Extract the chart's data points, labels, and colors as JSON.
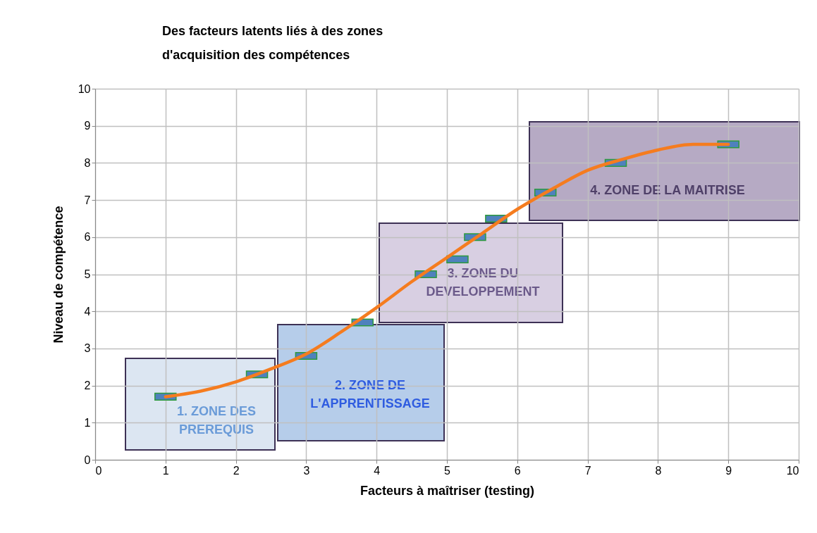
{
  "chart_data": {
    "type": "scatter",
    "title": "Des facteurs latents liés à des zones\nd'acquisition des compétences",
    "xlabel": "Facteurs à maîtriser (testing)",
    "ylabel": "Niveau de compétence",
    "series": [
      {
        "color": "#4f81bd",
        "x": [
          1.0,
          2.3,
          3.0,
          3.8,
          4.7,
          5.15,
          5.4,
          5.7,
          6.4,
          7.4,
          9.0
        ],
        "values": [
          1.7,
          2.3,
          2.8,
          3.7,
          5.0,
          5.4,
          6.0,
          6.5,
          7.2,
          8.0,
          8.5
        ]
      },
      {
        "type": "line",
        "color": "#f57c1f",
        "x": [
          1.0,
          1.5,
          2.0,
          2.5,
          3.0,
          3.5,
          4.0,
          4.5,
          5.0,
          5.5,
          6.0,
          6.5,
          7.0,
          7.5,
          8.0,
          8.5,
          9.0
        ],
        "values": [
          1.7,
          1.85,
          2.1,
          2.45,
          2.85,
          3.45,
          4.1,
          4.8,
          5.45,
          6.1,
          6.75,
          7.3,
          7.8,
          8.1,
          8.35,
          8.5,
          8.5
        ]
      }
    ],
    "annotations": [
      "1. ZONE DES\nPREREQUIS",
      "2. ZONE DE\nL'APPRENTISSAGE",
      "3. ZONE DU\nDEVELOPPEMENT",
      "4. ZONE DE LA MAITRISE"
    ],
    "xlim": [
      0,
      10
    ],
    "xticks": [
      0,
      1,
      2,
      3,
      4,
      5,
      6,
      7,
      8,
      9,
      10
    ],
    "ylim": [
      0,
      10
    ],
    "yticks": [
      0,
      1,
      2,
      3,
      4,
      5,
      6,
      7,
      8,
      9,
      10
    ],
    "grid": true
  }
}
